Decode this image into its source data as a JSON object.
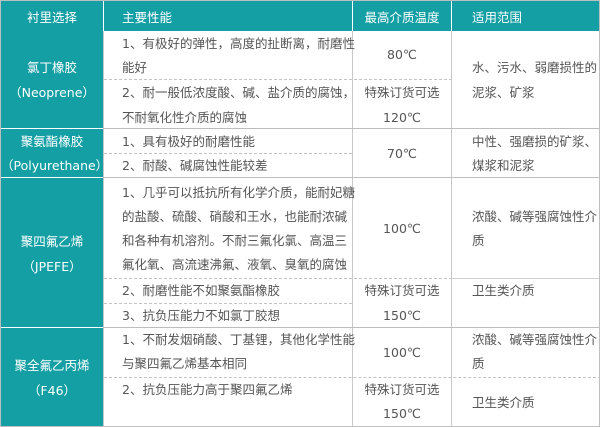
{
  "colors": {
    "header_bg": "#139fa4",
    "text": "#555555"
  },
  "header": [
    "衬里选择",
    "主要性能",
    "最高介质温度",
    "适用范围"
  ],
  "rows": [
    {
      "lining": [
        "氯丁橡胶",
        "（Neoprene）"
      ],
      "performance": [
        "1、有极好的弹性，高度的扯断离，耐磨性",
        "能好",
        "2、耐一般低浓度酸、碱、盐介质的腐蚀，",
        "不耐氧化性介质的腐蚀"
      ],
      "temperature": [
        "80℃",
        "特殊订货可选",
        "120℃"
      ],
      "scope": [
        "水、污水、弱磨损性的",
        "泥浆、矿浆"
      ]
    },
    {
      "lining": [
        "聚氨酯橡胶",
        "（Polyurethane）"
      ],
      "performance": [
        "1、具有极好的耐磨性能",
        "2、耐酸、碱腐蚀性能较差"
      ],
      "temperature": [
        "70℃"
      ],
      "scope": [
        "中性、强磨损的矿浆、",
        "煤浆和泥浆"
      ]
    },
    {
      "lining": [
        "聚四氟乙烯",
        "（JPEFE）"
      ],
      "performance": [
        "1、几乎可以抵抗所有化学介质，能耐妃糖",
        "的盐酸、硫酸、硝酸和王水，也能耐浓碱",
        "和各种有机溶剂。不耐三氟化氯、高温三",
        "氟化氧、高流速沸氟、液氧、臭氧的腐蚀",
        "2、耐磨性能不如聚氨酯橡胶",
        "3、抗负压能力不如氯丁胶想"
      ],
      "temperature": [
        "100℃",
        "特殊订货可选",
        "150℃"
      ],
      "scope": [
        "浓酸、碱等强腐蚀性介",
        "质",
        "卫生类介质"
      ]
    },
    {
      "lining": [
        "聚全氟乙丙烯",
        "（F46）"
      ],
      "performance": [
        "1、不耐发烟硝酸、丁基锂，其他化学性能",
        "与聚四氟乙烯基本相同",
        "2、抗负压能力高于聚四氟乙烯"
      ],
      "temperature": [
        "100℃",
        "特殊订货可选",
        "150℃"
      ],
      "scope": [
        "浓酸、碱等强腐蚀性介",
        "质",
        "卫生类介质"
      ]
    }
  ]
}
